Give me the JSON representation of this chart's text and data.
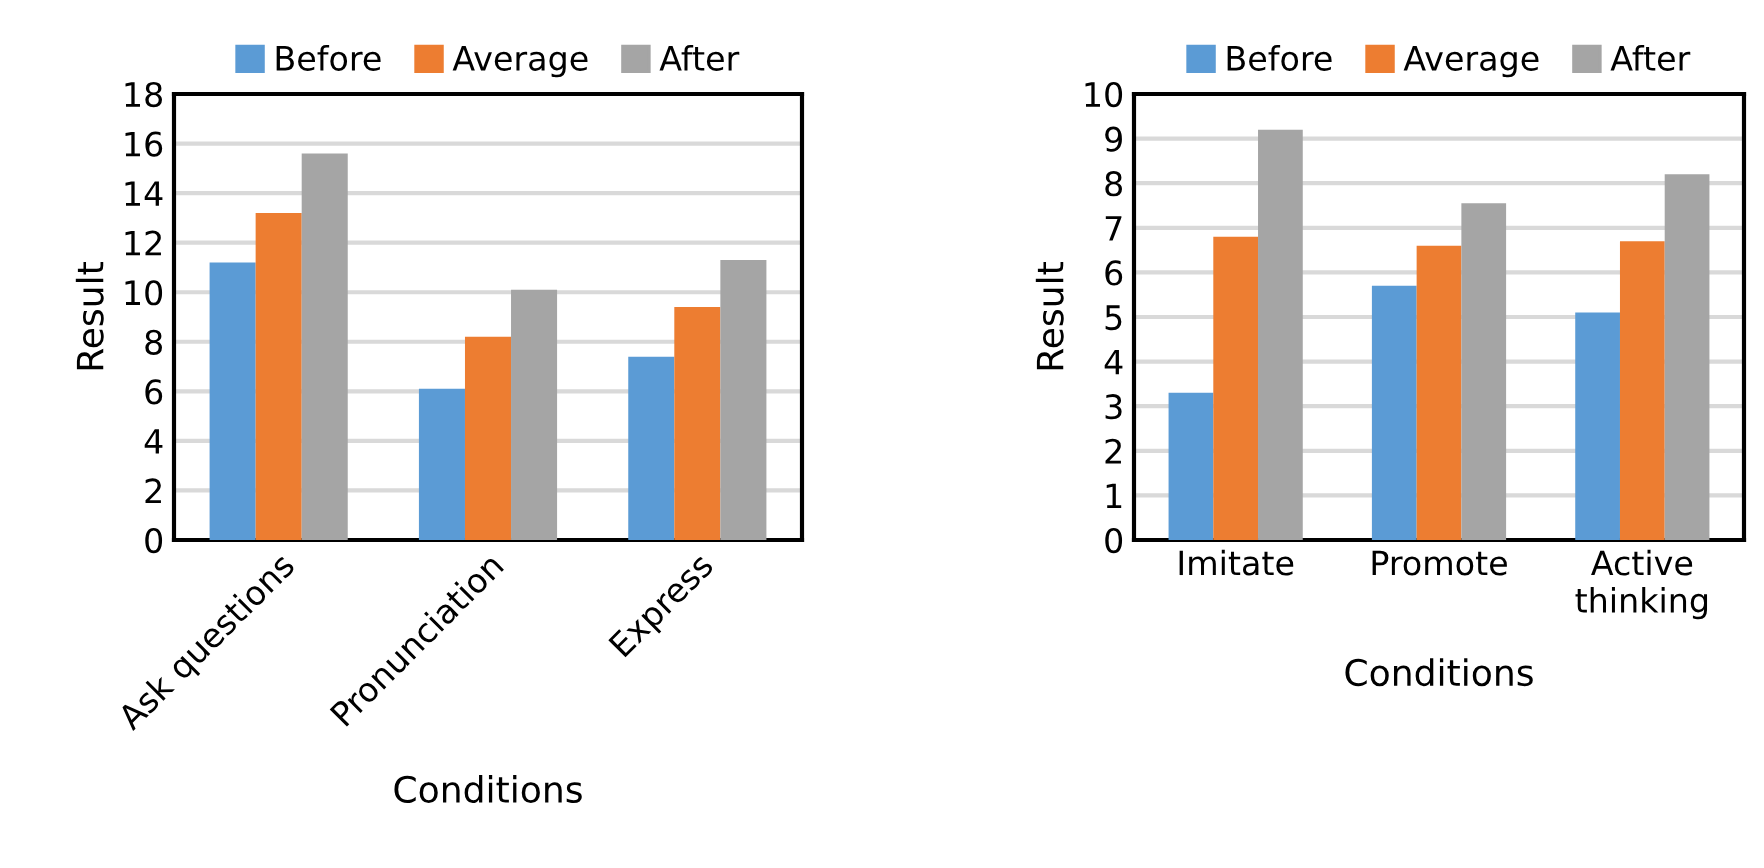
{
  "chart_data": [
    {
      "type": "bar",
      "xlabel": "Conditions",
      "ylabel": "Result",
      "categories": [
        "Ask questions",
        "Pronunciation",
        "Express"
      ],
      "series": [
        {
          "name": "Before",
          "color": "#5b9bd5",
          "values": [
            11.2,
            6.1,
            7.4
          ]
        },
        {
          "name": "Average",
          "color": "#ed7d31",
          "values": [
            13.2,
            8.2,
            9.4
          ]
        },
        {
          "name": "After",
          "color": "#a5a5a5",
          "values": [
            15.6,
            10.1,
            11.3
          ]
        }
      ],
      "ylim": [
        0,
        18
      ],
      "yticks": [
        0,
        2,
        4,
        6,
        8,
        10,
        12,
        14,
        16,
        18
      ],
      "grid": "y",
      "legend": "top"
    },
    {
      "type": "bar",
      "xlabel": "Conditions",
      "ylabel": "Result",
      "categories": [
        "Imitate",
        "Promote",
        "Active thinking"
      ],
      "series": [
        {
          "name": "Before",
          "color": "#5b9bd5",
          "values": [
            3.3,
            5.7,
            5.1
          ]
        },
        {
          "name": "Average",
          "color": "#ed7d31",
          "values": [
            6.8,
            6.6,
            6.7
          ]
        },
        {
          "name": "After",
          "color": "#a5a5a5",
          "values": [
            9.2,
            7.55,
            8.2
          ]
        }
      ],
      "ylim": [
        0,
        10
      ],
      "yticks": [
        0,
        1,
        2,
        3,
        4,
        5,
        6,
        7,
        8,
        9,
        10
      ],
      "grid": "y",
      "legend": "top"
    }
  ]
}
